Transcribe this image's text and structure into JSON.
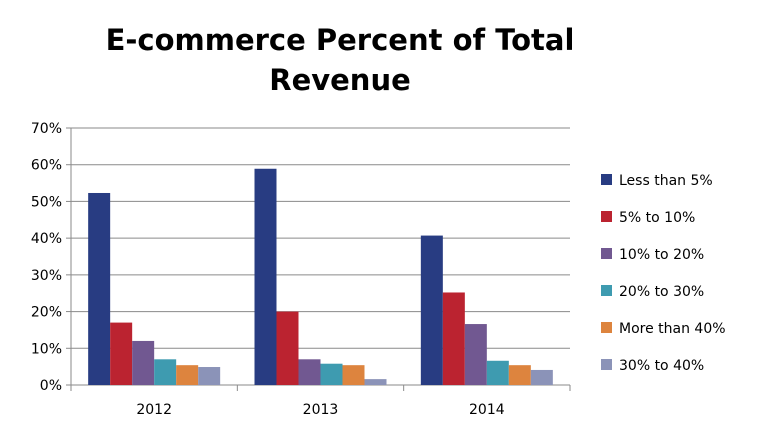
{
  "chart_data": {
    "type": "bar",
    "title_line1": "E-commerce Percent of Total",
    "title_line2": "Revenue",
    "categories": [
      "2012",
      "2013",
      "2014"
    ],
    "ylim": [
      0,
      70
    ],
    "yticks": [
      "0%",
      "10%",
      "20%",
      "30%",
      "40%",
      "50%",
      "60%",
      "70%"
    ],
    "grid": true,
    "legend_position": "right",
    "series": [
      {
        "name": "Less than 5%",
        "color": "#283c82",
        "values": [
          52.3,
          58.9,
          40.7
        ]
      },
      {
        "name": "5% to 10%",
        "color": "#bb2330",
        "values": [
          17.0,
          20.0,
          25.2
        ]
      },
      {
        "name": "10% to 20%",
        "color": "#715891",
        "values": [
          12.0,
          7.0,
          16.6
        ]
      },
      {
        "name": "20% to 30%",
        "color": "#3e9bb0",
        "values": [
          7.0,
          5.8,
          6.6
        ]
      },
      {
        "name": "More than 40%",
        "color": "#dd843e",
        "values": [
          5.4,
          5.4,
          5.4
        ]
      },
      {
        "name": "30% to 40%",
        "color": "#8b93b8",
        "values": [
          4.9,
          1.6,
          4.1
        ]
      }
    ]
  }
}
